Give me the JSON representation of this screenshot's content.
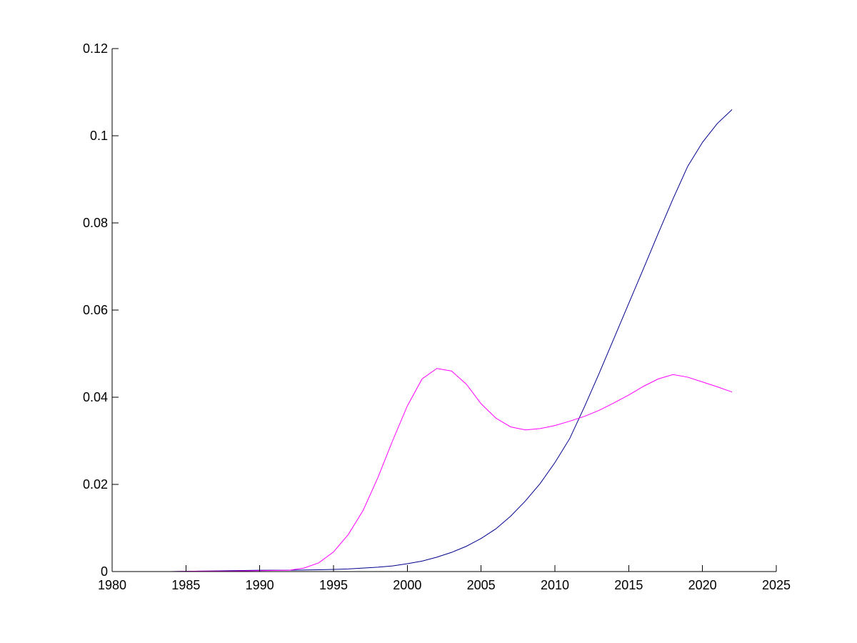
{
  "chart_data": {
    "type": "line",
    "title": "",
    "xlabel": "",
    "ylabel": "",
    "xlim": [
      1980,
      2025
    ],
    "ylim": [
      0,
      0.12
    ],
    "grid": false,
    "legend": "none",
    "x_ticks": [
      1980,
      1985,
      1990,
      1995,
      2000,
      2005,
      2010,
      2015,
      2020,
      2025
    ],
    "x_tick_labels": [
      "1980",
      "1985",
      "1990",
      "1995",
      "2000",
      "2005",
      "2010",
      "2015",
      "2020",
      "2025"
    ],
    "y_ticks": [
      0,
      0.02,
      0.04,
      0.06,
      0.08,
      0.1,
      0.12
    ],
    "y_tick_labels": [
      "0",
      "0.02",
      "0.04",
      "0.06",
      "0.08",
      "0.1",
      "0.12"
    ],
    "series": [
      {
        "color": "#00008b",
        "x": [
          1980,
          1982,
          1984,
          1986,
          1988,
          1990,
          1992,
          1994,
          1995,
          1996,
          1997,
          1998,
          1999,
          2000,
          2001,
          2002,
          2003,
          2004,
          2005,
          2006,
          2007,
          2008,
          2009,
          2010,
          2011,
          2012,
          2013,
          2014,
          2015,
          2016,
          2017,
          2018,
          2019,
          2020,
          2021,
          2022
        ],
        "y": [
          0,
          0,
          0,
          0.0001,
          0.0002,
          0.0003,
          0.0003,
          0.0004,
          0.0005,
          0.0006,
          0.0008,
          0.001,
          0.0013,
          0.0018,
          0.0024,
          0.0033,
          0.0044,
          0.0058,
          0.0076,
          0.0098,
          0.0127,
          0.0162,
          0.0202,
          0.025,
          0.0305,
          0.0378,
          0.0455,
          0.0535,
          0.0615,
          0.0695,
          0.0776,
          0.0855,
          0.093,
          0.0985,
          0.1028,
          0.106
        ]
      },
      {
        "color": "#ff00ff",
        "x": [
          1980,
          1982,
          1984,
          1986,
          1988,
          1990,
          1992,
          1993,
          1994,
          1995,
          1996,
          1997,
          1998,
          1999,
          2000,
          2001,
          2002,
          2003,
          2004,
          2005,
          2006,
          2007,
          2008,
          2009,
          2010,
          2011,
          2012,
          2013,
          2014,
          2015,
          2016,
          2017,
          2018,
          2019,
          2020,
          2021,
          2022
        ],
        "y": [
          0,
          0,
          0,
          0.0001,
          0.0001,
          0.0002,
          0.0003,
          0.0008,
          0.002,
          0.0045,
          0.0085,
          0.014,
          0.0215,
          0.03,
          0.038,
          0.0442,
          0.0466,
          0.046,
          0.043,
          0.0385,
          0.0352,
          0.0332,
          0.0325,
          0.0328,
          0.0335,
          0.0345,
          0.0356,
          0.037,
          0.0387,
          0.0405,
          0.0425,
          0.0442,
          0.0452,
          0.0446,
          0.0435,
          0.0424,
          0.0412
        ]
      }
    ]
  }
}
